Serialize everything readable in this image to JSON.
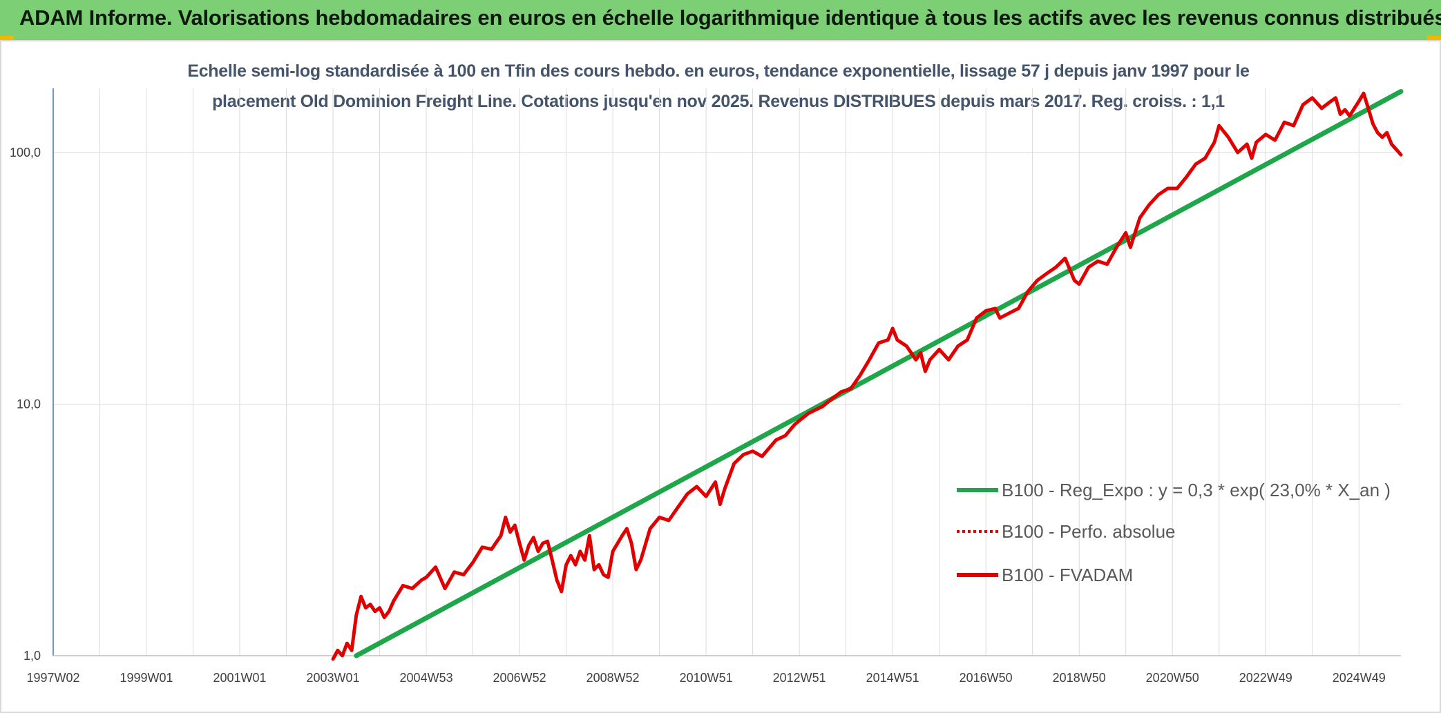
{
  "banner": {
    "title": "ADAM Informe. Valorisations hebdomadaires en euros en échelle logarithmique identique à tous les actifs avec les revenus connus distribués"
  },
  "colors": {
    "banner_bg": "#7ccf75",
    "corner_marks": "#f1b800",
    "trend": "#1fa64a",
    "fvadam": "#e00000",
    "perfo": "#e00000",
    "grid": "#d9d9d9",
    "subtitle": "#44546a"
  },
  "chart_data": {
    "type": "line",
    "title_line1": "Echelle semi-log standardisée à 100 en Tfin des cours hebdo. en euros, tendance exponentielle, lissage 57 j depuis janv 1997 pour le",
    "title_line2": "placement Old Dominion Freight Line. Cotations jusqu'en nov 2025. Revenus DISTRIBUES depuis mars 2017. Reg. croiss. : 1,1",
    "y_scale": "log",
    "ylim": [
      1,
      180
    ],
    "xlim": [
      1997.0,
      2025.9
    ],
    "grid": true,
    "legend_position": "right-center",
    "y_ticks": [
      {
        "value": 1,
        "label": "1,0"
      },
      {
        "value": 10,
        "label": "10,0"
      },
      {
        "value": 100,
        "label": "100,0"
      }
    ],
    "x_ticks": [
      {
        "x": 1997.0,
        "label": "1997W02"
      },
      {
        "x": 1999.0,
        "label": "1999W01"
      },
      {
        "x": 2001.0,
        "label": "2001W01"
      },
      {
        "x": 2003.0,
        "label": "2003W01"
      },
      {
        "x": 2005.0,
        "label": "2004W53"
      },
      {
        "x": 2007.0,
        "label": "2006W52"
      },
      {
        "x": 2009.0,
        "label": "2008W52"
      },
      {
        "x": 2011.0,
        "label": "2010W51"
      },
      {
        "x": 2013.0,
        "label": "2012W51"
      },
      {
        "x": 2015.0,
        "label": "2014W51"
      },
      {
        "x": 2017.0,
        "label": "2016W50"
      },
      {
        "x": 2019.0,
        "label": "2018W50"
      },
      {
        "x": 2021.0,
        "label": "2020W50"
      },
      {
        "x": 2023.0,
        "label": "2022W49"
      },
      {
        "x": 2025.0,
        "label": "2024W49"
      }
    ],
    "series": [
      {
        "name": "B100 - Reg_Expo : y = 0,3 * exp( 23,0% *  X_an )",
        "style": "solid",
        "color": "#1fa64a",
        "points": [
          [
            2003.5,
            1.0
          ],
          [
            2025.9,
            175
          ]
        ]
      },
      {
        "name": "B100 - Perfo. absolue",
        "style": "dotted",
        "color": "#e00000",
        "points": []
      },
      {
        "name": "B100 - FVADAM",
        "style": "solid",
        "color": "#e00000",
        "points": [
          [
            2003.0,
            0.97
          ],
          [
            2003.1,
            1.05
          ],
          [
            2003.2,
            1.0
          ],
          [
            2003.3,
            1.12
          ],
          [
            2003.4,
            1.05
          ],
          [
            2003.5,
            1.45
          ],
          [
            2003.6,
            1.72
          ],
          [
            2003.7,
            1.55
          ],
          [
            2003.8,
            1.6
          ],
          [
            2003.9,
            1.5
          ],
          [
            2004.0,
            1.55
          ],
          [
            2004.1,
            1.42
          ],
          [
            2004.2,
            1.5
          ],
          [
            2004.3,
            1.65
          ],
          [
            2004.5,
            1.9
          ],
          [
            2004.7,
            1.85
          ],
          [
            2004.9,
            2.0
          ],
          [
            2005.0,
            2.05
          ],
          [
            2005.2,
            2.25
          ],
          [
            2005.4,
            1.85
          ],
          [
            2005.6,
            2.15
          ],
          [
            2005.8,
            2.1
          ],
          [
            2006.0,
            2.35
          ],
          [
            2006.2,
            2.7
          ],
          [
            2006.4,
            2.65
          ],
          [
            2006.6,
            3.0
          ],
          [
            2006.7,
            3.55
          ],
          [
            2006.8,
            3.1
          ],
          [
            2006.9,
            3.3
          ],
          [
            2007.0,
            2.8
          ],
          [
            2007.1,
            2.4
          ],
          [
            2007.2,
            2.75
          ],
          [
            2007.3,
            2.95
          ],
          [
            2007.4,
            2.6
          ],
          [
            2007.5,
            2.8
          ],
          [
            2007.6,
            2.85
          ],
          [
            2007.7,
            2.4
          ],
          [
            2007.8,
            2.0
          ],
          [
            2007.9,
            1.8
          ],
          [
            2008.0,
            2.3
          ],
          [
            2008.1,
            2.5
          ],
          [
            2008.2,
            2.3
          ],
          [
            2008.3,
            2.6
          ],
          [
            2008.4,
            2.4
          ],
          [
            2008.5,
            3.0
          ],
          [
            2008.6,
            2.2
          ],
          [
            2008.7,
            2.3
          ],
          [
            2008.8,
            2.1
          ],
          [
            2008.9,
            2.05
          ],
          [
            2009.0,
            2.6
          ],
          [
            2009.2,
            3.0
          ],
          [
            2009.3,
            3.2
          ],
          [
            2009.4,
            2.8
          ],
          [
            2009.5,
            2.2
          ],
          [
            2009.6,
            2.4
          ],
          [
            2009.8,
            3.2
          ],
          [
            2010.0,
            3.55
          ],
          [
            2010.2,
            3.45
          ],
          [
            2010.4,
            3.9
          ],
          [
            2010.6,
            4.4
          ],
          [
            2010.8,
            4.7
          ],
          [
            2011.0,
            4.3
          ],
          [
            2011.2,
            4.9
          ],
          [
            2011.3,
            4.0
          ],
          [
            2011.4,
            4.6
          ],
          [
            2011.6,
            5.8
          ],
          [
            2011.8,
            6.3
          ],
          [
            2012.0,
            6.5
          ],
          [
            2012.2,
            6.2
          ],
          [
            2012.5,
            7.2
          ],
          [
            2012.7,
            7.5
          ],
          [
            2012.9,
            8.3
          ],
          [
            2013.0,
            8.6
          ],
          [
            2013.2,
            9.2
          ],
          [
            2013.5,
            9.8
          ],
          [
            2013.7,
            10.5
          ],
          [
            2013.9,
            11.2
          ],
          [
            2014.1,
            11.5
          ],
          [
            2014.3,
            13.0
          ],
          [
            2014.5,
            15.0
          ],
          [
            2014.7,
            17.5
          ],
          [
            2014.9,
            18.0
          ],
          [
            2015.0,
            20.0
          ],
          [
            2015.1,
            18.0
          ],
          [
            2015.3,
            17.0
          ],
          [
            2015.5,
            15.0
          ],
          [
            2015.6,
            16.0
          ],
          [
            2015.7,
            13.5
          ],
          [
            2015.8,
            15.0
          ],
          [
            2016.0,
            16.5
          ],
          [
            2016.2,
            15.0
          ],
          [
            2016.4,
            17.0
          ],
          [
            2016.6,
            18.0
          ],
          [
            2016.8,
            22.0
          ],
          [
            2017.0,
            23.5
          ],
          [
            2017.2,
            24.0
          ],
          [
            2017.3,
            22.0
          ],
          [
            2017.5,
            23.0
          ],
          [
            2017.7,
            24.0
          ],
          [
            2017.9,
            28.0
          ],
          [
            2018.1,
            31.0
          ],
          [
            2018.3,
            33.0
          ],
          [
            2018.5,
            35.0
          ],
          [
            2018.7,
            38.0
          ],
          [
            2018.9,
            31.0
          ],
          [
            2019.0,
            30.0
          ],
          [
            2019.2,
            35.0
          ],
          [
            2019.4,
            37.0
          ],
          [
            2019.6,
            36.0
          ],
          [
            2019.8,
            42.0
          ],
          [
            2020.0,
            48.0
          ],
          [
            2020.1,
            42.0
          ],
          [
            2020.3,
            55.0
          ],
          [
            2020.5,
            62.0
          ],
          [
            2020.7,
            68.0
          ],
          [
            2020.9,
            72.0
          ],
          [
            2021.1,
            72.0
          ],
          [
            2021.3,
            80.0
          ],
          [
            2021.5,
            90.0
          ],
          [
            2021.7,
            95.0
          ],
          [
            2021.9,
            110.0
          ],
          [
            2022.0,
            128.0
          ],
          [
            2022.2,
            115.0
          ],
          [
            2022.4,
            100.0
          ],
          [
            2022.6,
            108.0
          ],
          [
            2022.7,
            95.0
          ],
          [
            2022.8,
            110.0
          ],
          [
            2023.0,
            118.0
          ],
          [
            2023.2,
            112.0
          ],
          [
            2023.4,
            132.0
          ],
          [
            2023.6,
            128.0
          ],
          [
            2023.8,
            155.0
          ],
          [
            2024.0,
            165.0
          ],
          [
            2024.2,
            150.0
          ],
          [
            2024.4,
            160.0
          ],
          [
            2024.5,
            165.0
          ],
          [
            2024.6,
            142.0
          ],
          [
            2024.7,
            148.0
          ],
          [
            2024.8,
            140.0
          ],
          [
            2025.0,
            160.0
          ],
          [
            2025.1,
            172.0
          ],
          [
            2025.2,
            150.0
          ],
          [
            2025.3,
            130.0
          ],
          [
            2025.4,
            120.0
          ],
          [
            2025.5,
            115.0
          ],
          [
            2025.6,
            120.0
          ],
          [
            2025.7,
            108.0
          ],
          [
            2025.8,
            103.0
          ],
          [
            2025.9,
            98.0
          ]
        ]
      }
    ]
  }
}
